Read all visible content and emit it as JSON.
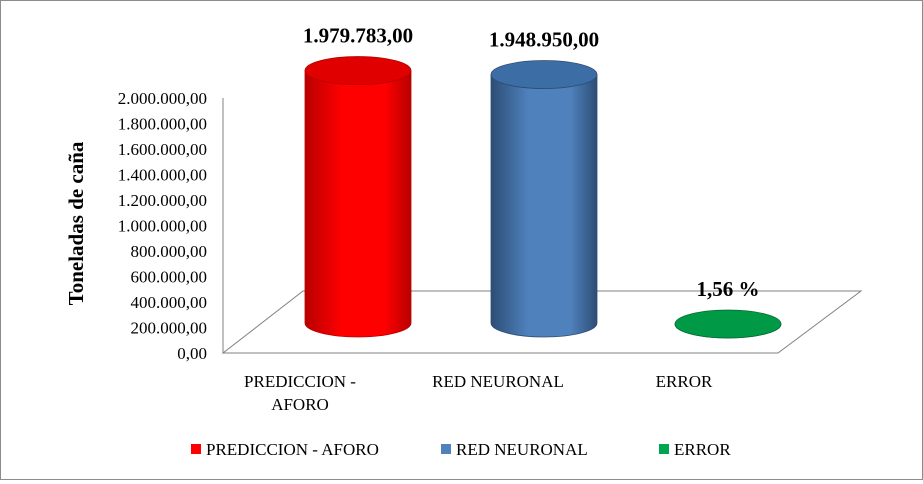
{
  "chart_data": {
    "type": "bar",
    "style": "3d-cylinder",
    "title": "",
    "xlabel": "",
    "ylabel": "Toneladas de caña",
    "ylim": [
      0,
      2000000
    ],
    "y_ticks": [
      "0,00",
      "200.000,00",
      "400.000,00",
      "600.000,00",
      "800.000,00",
      "1.000.000,00",
      "1.200.000,00",
      "1.400.000,00",
      "1.600.000,00",
      "1.800.000,00",
      "2.000.000,00"
    ],
    "grid": false,
    "legend_position": "bottom",
    "categories": [
      {
        "name": "PREDICCION - AFORO",
        "label_lines": [
          "PREDICCION -",
          "AFORO"
        ],
        "legend": "PREDICCION - AFORO",
        "value": 1979783,
        "data_label": "1.979.783,00",
        "color": "#ff0000",
        "color_dark": "#b80000",
        "color_top": "#e00000"
      },
      {
        "name": "RED NEURONAL",
        "label_lines": [
          "RED NEURONAL"
        ],
        "legend": "RED NEURONAL",
        "value": 1948950,
        "data_label": "1.948.950,00",
        "color": "#4f81bd",
        "color_dark": "#2c4d75",
        "color_top": "#3d6da5"
      },
      {
        "name": "ERROR",
        "label_lines": [
          "ERROR"
        ],
        "legend": "ERROR",
        "value": 1.56,
        "data_label": "1,56 %",
        "color": "#00a550",
        "color_dark": "#006b32",
        "color_top": "#009a46"
      }
    ]
  }
}
